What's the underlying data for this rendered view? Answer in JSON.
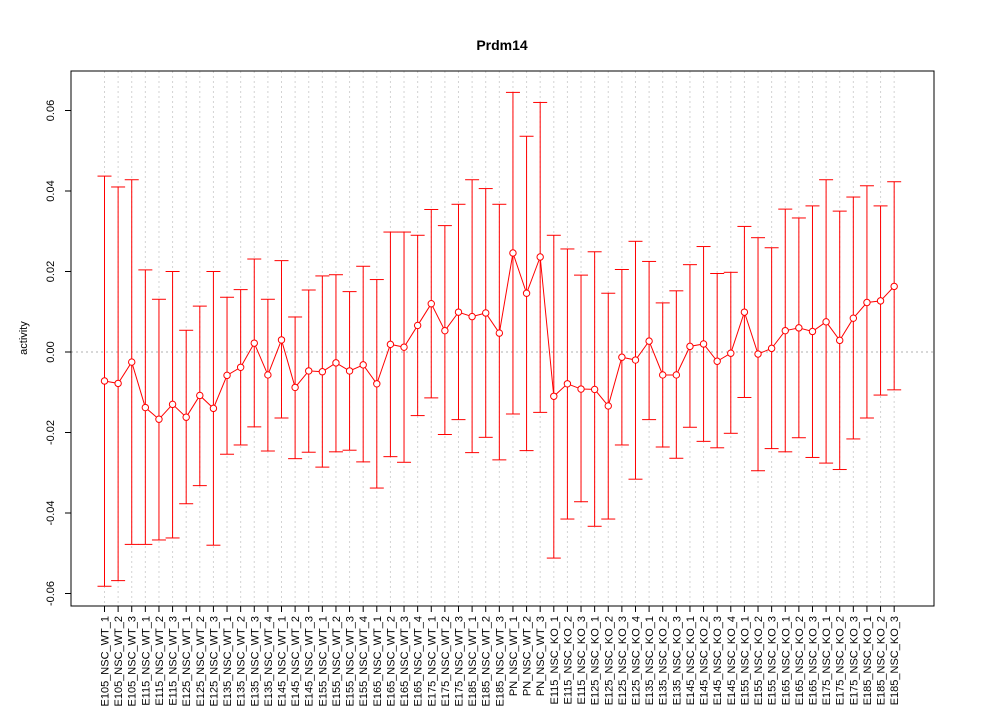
{
  "chart_data": {
    "type": "line",
    "title": "Prdm14",
    "xlabel": "",
    "ylabel": "activity",
    "ylim": [
      -0.064,
      0.0695
    ],
    "yticks": [
      -0.06,
      -0.04,
      -0.02,
      0.0,
      0.02,
      0.04,
      0.06
    ],
    "ytick_labels": [
      "-0.06",
      "-0.04",
      "-0.02",
      "0.00",
      "0.02",
      "0.04",
      "0.06"
    ],
    "grid": true,
    "reference_line_y": 0,
    "categories": [
      "E105_NSC_WT_1",
      "E105_NSC_WT_2",
      "E105_NSC_WT_3",
      "E115_NSC_WT_1",
      "E115_NSC_WT_2",
      "E115_NSC_WT_3",
      "E125_NSC_WT_1",
      "E125_NSC_WT_2",
      "E125_NSC_WT_3",
      "E135_NSC_WT_1",
      "E135_NSC_WT_2",
      "E135_NSC_WT_3",
      "E135_NSC_WT_4",
      "E145_NSC_WT_1",
      "E145_NSC_WT_2",
      "E145_NSC_WT_3",
      "E155_NSC_WT_1",
      "E155_NSC_WT_2",
      "E155_NSC_WT_3",
      "E155_NSC_WT_4",
      "E165_NSC_WT_1",
      "E165_NSC_WT_2",
      "E165_NSC_WT_3",
      "E165_NSC_WT_4",
      "E175_NSC_WT_1",
      "E175_NSC_WT_2",
      "E175_NSC_WT_3",
      "E185_NSC_WT_1",
      "E185_NSC_WT_2",
      "E185_NSC_WT_3",
      "PN_NSC_WT_1",
      "PN_NSC_WT_2",
      "PN_NSC_WT_3",
      "E115_NSC_KO_1",
      "E115_NSC_KO_2",
      "E115_NSC_KO_3",
      "E125_NSC_KO_1",
      "E125_NSC_KO_2",
      "E125_NSC_KO_3",
      "E125_NSC_KO_4",
      "E135_NSC_KO_1",
      "E135_NSC_KO_2",
      "E135_NSC_KO_3",
      "E145_NSC_KO_1",
      "E145_NSC_KO_2",
      "E145_NSC_KO_3",
      "E145_NSC_KO_4",
      "E155_NSC_KO_1",
      "E155_NSC_KO_2",
      "E155_NSC_KO_3",
      "E165_NSC_KO_1",
      "E165_NSC_KO_2",
      "E165_NSC_KO_3",
      "E175_NSC_KO_1",
      "E175_NSC_KO_2",
      "E175_NSC_KO_3",
      "E185_NSC_KO_1",
      "E185_NSC_KO_2",
      "E185_NSC_KO_3"
    ],
    "series": [
      {
        "color": "#ff0000",
        "values": [
          -0.0072,
          -0.0078,
          -0.0025,
          -0.0138,
          -0.0167,
          -0.013,
          -0.0162,
          -0.0108,
          -0.014,
          -0.0058,
          -0.0038,
          0.0022,
          -0.0057,
          0.003,
          -0.0088,
          -0.0047,
          -0.0049,
          -0.0027,
          -0.0047,
          -0.0032,
          -0.0079,
          0.0019,
          0.0012,
          0.0066,
          0.012,
          0.0053,
          0.0099,
          0.0088,
          0.0097,
          0.0047,
          0.0246,
          0.0146,
          0.0236,
          -0.011,
          -0.0079,
          -0.0092,
          -0.0093,
          -0.0134,
          -0.0013,
          -0.002,
          0.0027,
          -0.0057,
          -0.0057,
          0.0014,
          0.002,
          -0.0023,
          -0.0003,
          0.0099,
          -0.0005,
          0.0009,
          0.0053,
          0.006,
          0.0051,
          0.0075,
          0.0029,
          0.0084,
          0.0123,
          0.0127,
          0.0163
        ],
        "upper": [
          0.0437,
          0.041,
          0.0428,
          0.0204,
          0.0131,
          0.02,
          0.0054,
          0.0114,
          0.02,
          0.0136,
          0.0155,
          0.0231,
          0.0131,
          0.0227,
          0.0087,
          0.0154,
          0.0189,
          0.0192,
          0.015,
          0.0213,
          0.018,
          0.0298,
          0.0298,
          0.029,
          0.0354,
          0.0314,
          0.0367,
          0.0428,
          0.0406,
          0.0367,
          0.0645,
          0.0536,
          0.062,
          0.029,
          0.0256,
          0.0191,
          0.0249,
          0.0146,
          0.0205,
          0.0275,
          0.0225,
          0.0122,
          0.0152,
          0.0217,
          0.0262,
          0.0195,
          0.0198,
          0.0312,
          0.0284,
          0.0259,
          0.0355,
          0.0333,
          0.0363,
          0.0428,
          0.035,
          0.0385,
          0.0413,
          0.0363,
          0.0423
        ],
        "lower": [
          -0.0582,
          -0.0568,
          -0.0478,
          -0.0478,
          -0.0467,
          -0.0462,
          -0.0377,
          -0.0332,
          -0.048,
          -0.0254,
          -0.0231,
          -0.0186,
          -0.0246,
          -0.0164,
          -0.0265,
          -0.0249,
          -0.0286,
          -0.0248,
          -0.0244,
          -0.0273,
          -0.0338,
          -0.026,
          -0.0274,
          -0.0158,
          -0.0114,
          -0.0205,
          -0.0168,
          -0.025,
          -0.0212,
          -0.0268,
          -0.0154,
          -0.0245,
          -0.015,
          -0.0512,
          -0.0415,
          -0.0372,
          -0.0433,
          -0.0415,
          -0.0231,
          -0.0316,
          -0.0168,
          -0.0236,
          -0.0264,
          -0.0187,
          -0.0222,
          -0.0238,
          -0.0202,
          -0.0113,
          -0.0295,
          -0.024,
          -0.0248,
          -0.0213,
          -0.0262,
          -0.0276,
          -0.0292,
          -0.0216,
          -0.0164,
          -0.0107,
          -0.0094
        ]
      }
    ]
  }
}
